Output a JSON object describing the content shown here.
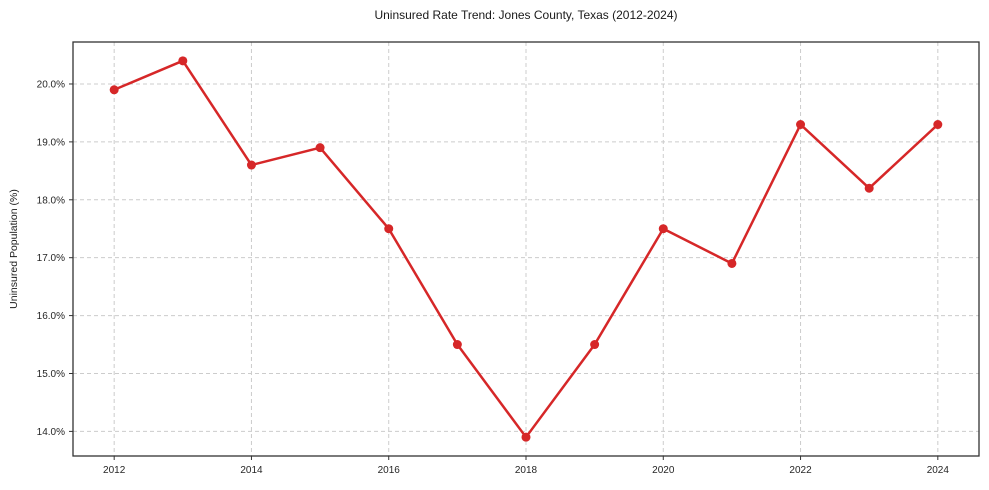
{
  "chart_data": {
    "type": "line",
    "title": "Uninsured Rate Trend: Jones County, Texas (2012-2024)",
    "ylabel": "Uninsured Population (%)",
    "xlabel": "",
    "x": [
      2012,
      2013,
      2014,
      2015,
      2016,
      2017,
      2018,
      2019,
      2020,
      2021,
      2022,
      2023,
      2024
    ],
    "values": [
      19.9,
      20.4,
      18.6,
      18.9,
      17.5,
      15.5,
      13.9,
      15.5,
      17.5,
      16.9,
      19.3,
      18.2,
      19.3
    ],
    "x_ticks": [
      2012,
      2014,
      2016,
      2018,
      2020,
      2022,
      2024
    ],
    "x_tick_labels": [
      "2012",
      "2014",
      "2016",
      "2018",
      "2020",
      "2022",
      "2024"
    ],
    "y_ticks": [
      14,
      15,
      16,
      17,
      18,
      19,
      20
    ],
    "y_tick_labels": [
      "14.0%",
      "15.0%",
      "16.0%",
      "17.0%",
      "18.0%",
      "19.0%",
      "20.0%"
    ],
    "xlim": [
      2011.4,
      2024.6
    ],
    "ylim": [
      13.575,
      20.725
    ],
    "grid": true,
    "legend": "none",
    "line_color": "#d62728",
    "marker_color": "#d62728",
    "grid_color": "#cccccc",
    "spine_color": "#333333",
    "text_color": "#262626"
  }
}
